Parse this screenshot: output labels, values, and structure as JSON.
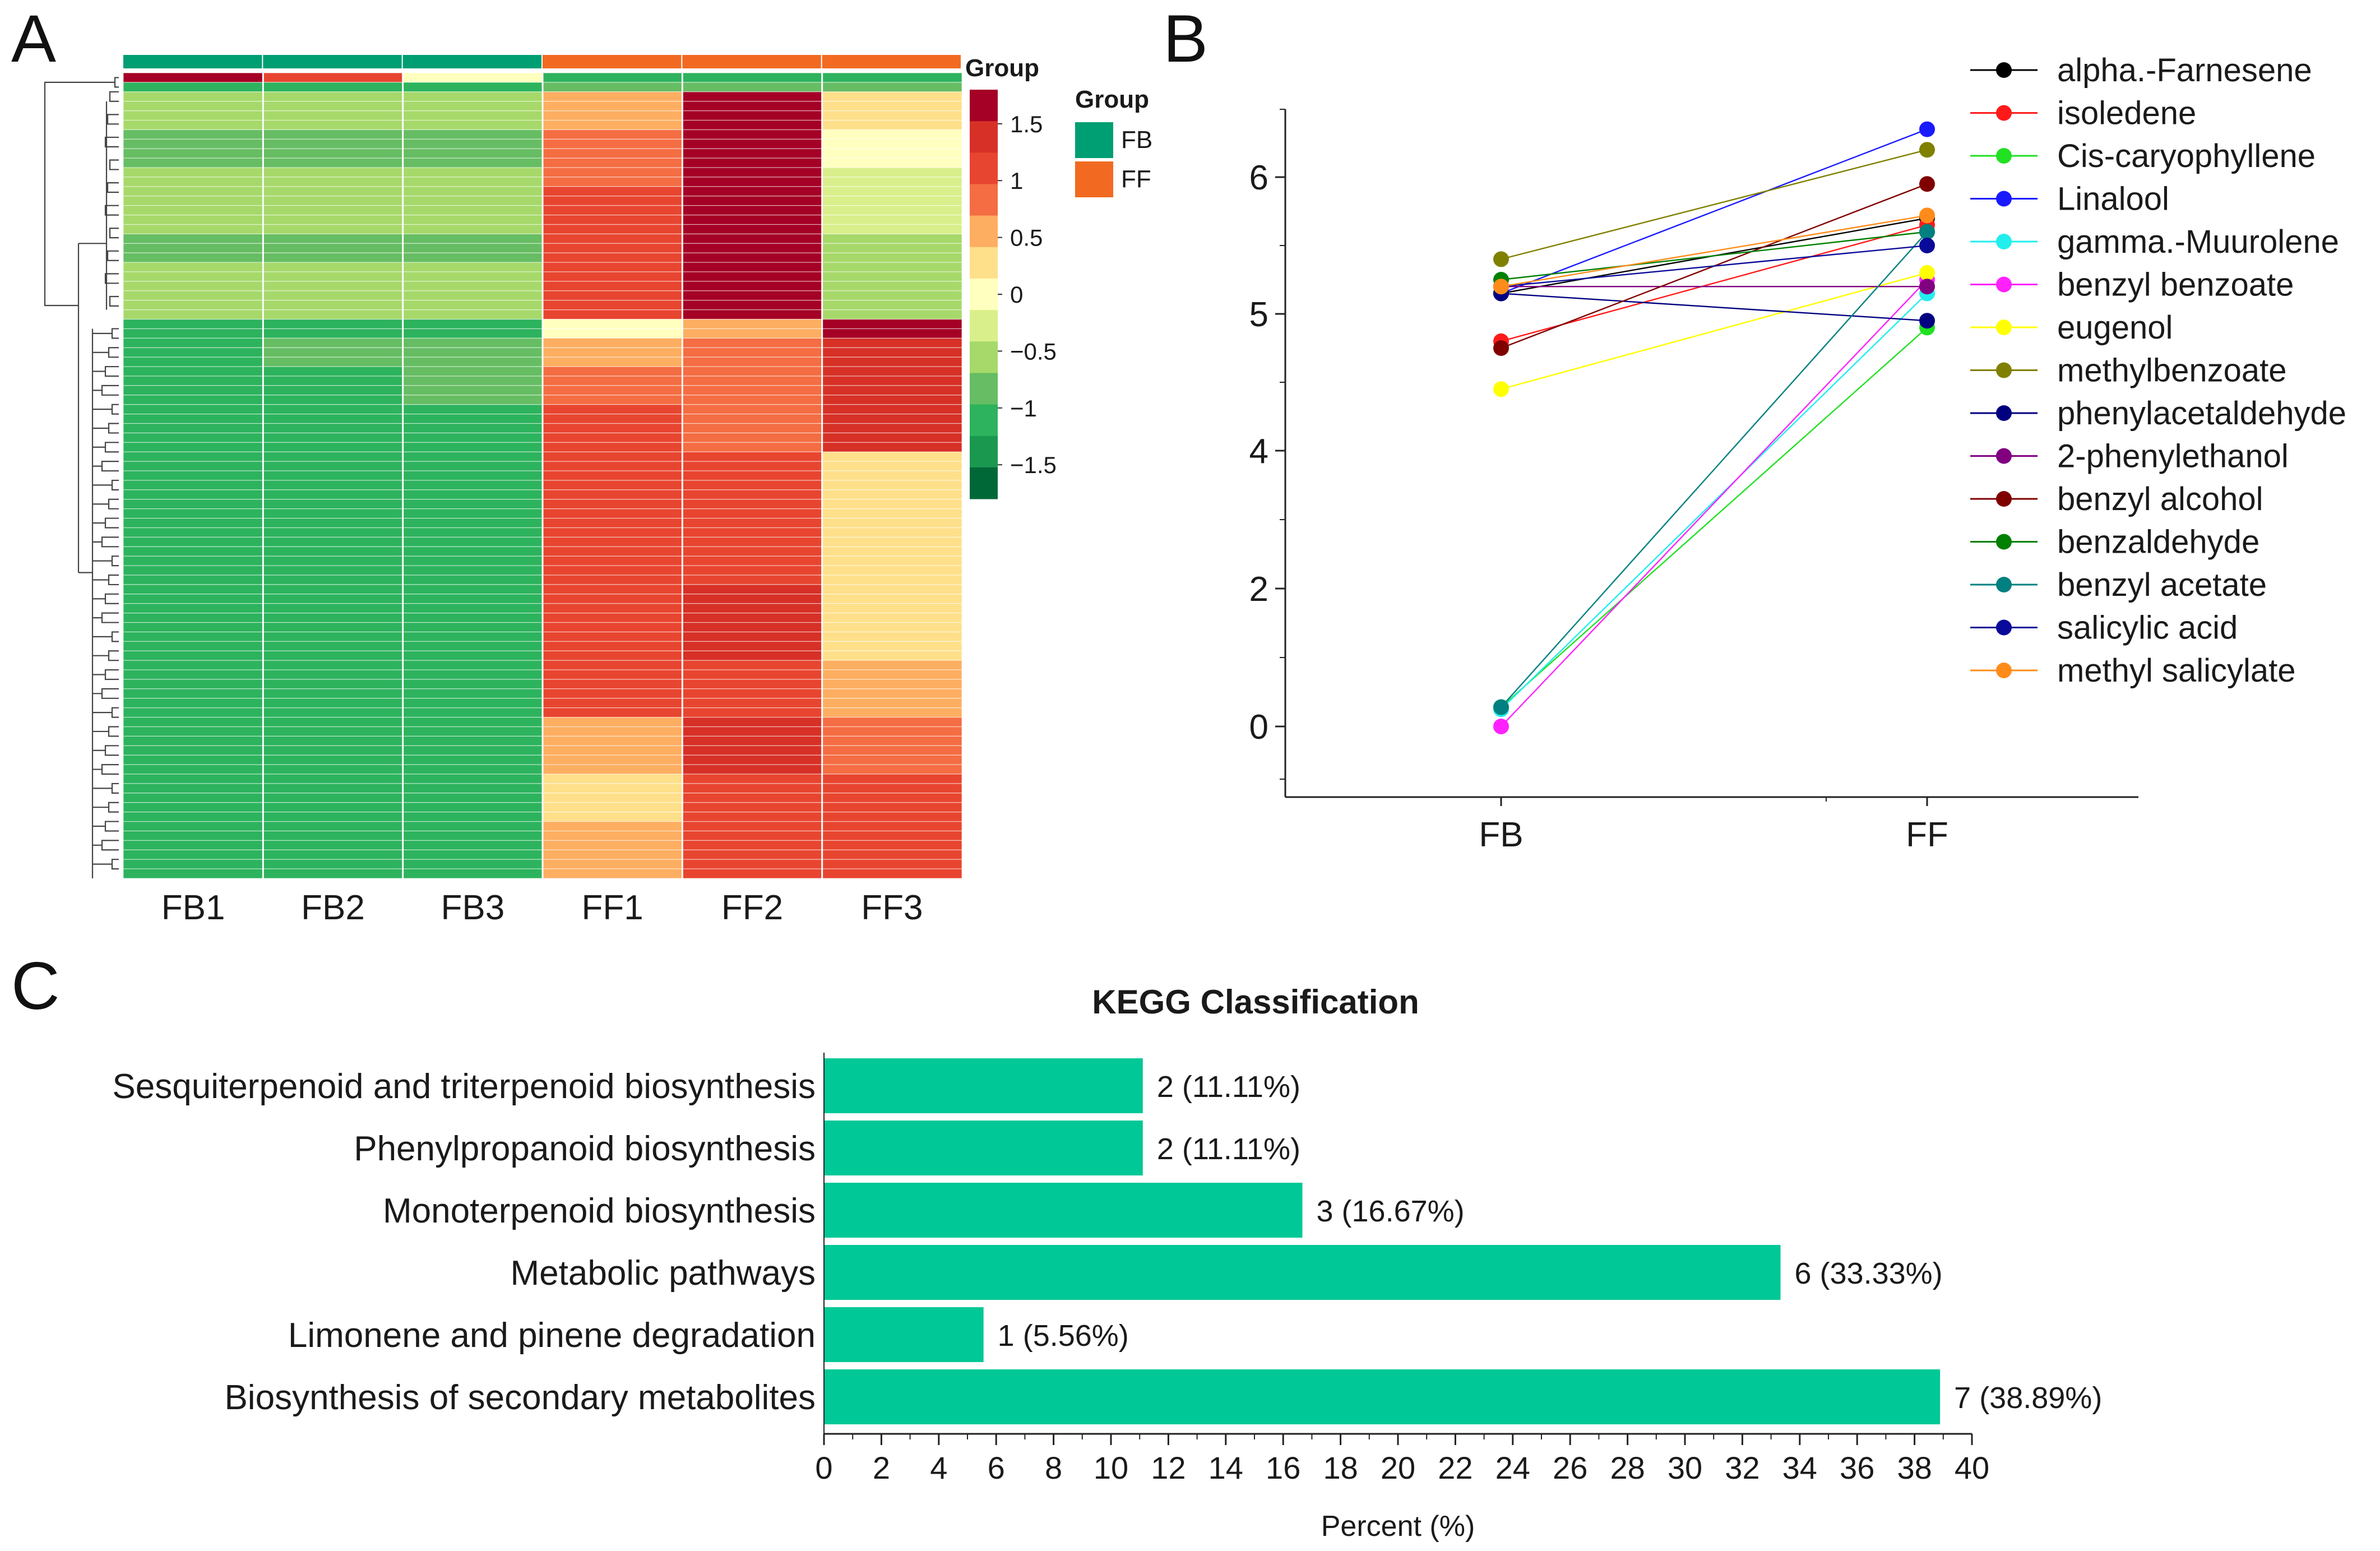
{
  "panels": {
    "a": "A",
    "b": "B",
    "c": "C"
  },
  "chart_data": [
    {
      "type": "heatmap",
      "panel": "A",
      "columns": [
        "FB1",
        "FB2",
        "FB3",
        "FF1",
        "FF2",
        "FF3"
      ],
      "group_title": "Group",
      "legend_title": "Group",
      "groups": [
        {
          "name": "FB",
          "color": "#009e73"
        },
        {
          "name": "FF",
          "color": "#f26a21"
        }
      ],
      "column_groups": [
        "FB",
        "FB",
        "FB",
        "FF",
        "FF",
        "FF"
      ],
      "scale_ticks": [
        "1.5",
        "1",
        "0.5",
        "0",
        "−0.5",
        "−1",
        "−1.5"
      ],
      "scale_range": [
        -1.8,
        1.8
      ],
      "colors": [
        "#006837",
        "#1a9850",
        "#2db35d",
        "#66bd63",
        "#a6d96a",
        "#d9ef8b",
        "#ffffbf",
        "#fee08b",
        "#fdae61",
        "#f46d43",
        "#e84530",
        "#d73027",
        "#a50026"
      ],
      "row_blocks": [
        {
          "rows": 1,
          "values": [
            1.6,
            1.0,
            0.1,
            -1.0,
            -1.0,
            -1.0
          ]
        },
        {
          "rows": 1,
          "values": [
            -1.0,
            -1.0,
            -1.0,
            -0.9,
            -0.9,
            -0.9
          ]
        },
        {
          "rows": 4,
          "values": [
            -0.6,
            -0.6,
            -0.6,
            0.6,
            1.7,
            0.2
          ]
        },
        {
          "rows": 4,
          "values": [
            -0.7,
            -0.7,
            -0.7,
            0.9,
            1.6,
            0.0
          ]
        },
        {
          "rows": 2,
          "values": [
            -0.5,
            -0.5,
            -0.5,
            0.8,
            1.6,
            -0.2
          ]
        },
        {
          "rows": 5,
          "values": [
            -0.6,
            -0.6,
            -0.6,
            1.1,
            1.7,
            -0.4
          ]
        },
        {
          "rows": 3,
          "values": [
            -0.7,
            -0.7,
            -0.7,
            1.2,
            1.6,
            -0.6
          ]
        },
        {
          "rows": 6,
          "values": [
            -0.6,
            -0.6,
            -0.6,
            1.0,
            1.7,
            -0.5
          ]
        },
        {
          "rows": 2,
          "values": [
            -1.0,
            -1.0,
            -1.0,
            0.1,
            0.6,
            1.6
          ]
        },
        {
          "rows": 3,
          "values": [
            -1.0,
            -0.7,
            -0.8,
            0.5,
            0.8,
            1.4
          ]
        },
        {
          "rows": 4,
          "values": [
            -1.0,
            -1.0,
            -0.9,
            0.9,
            0.7,
            1.4
          ]
        },
        {
          "rows": 5,
          "values": [
            -1.0,
            -1.0,
            -1.0,
            1.0,
            0.7,
            1.3
          ]
        },
        {
          "rows": 4,
          "values": [
            -1.0,
            -1.0,
            -1.0,
            1.2,
            1.1,
            0.4
          ]
        },
        {
          "rows": 10,
          "values": [
            -1.0,
            -1.0,
            -1.0,
            1.0,
            1.2,
            0.4
          ]
        },
        {
          "rows": 8,
          "values": [
            -1.0,
            -1.0,
            -1.0,
            1.0,
            1.4,
            0.4
          ]
        },
        {
          "rows": 6,
          "values": [
            -1.0,
            -1.0,
            -1.0,
            1.1,
            1.1,
            0.6
          ]
        },
        {
          "rows": 6,
          "values": [
            -1.0,
            -1.0,
            -1.0,
            0.5,
            1.3,
            0.9
          ]
        },
        {
          "rows": 5,
          "values": [
            -1.0,
            -1.0,
            -1.0,
            0.4,
            1.2,
            1.0
          ]
        },
        {
          "rows": 6,
          "values": [
            -1.0,
            -1.0,
            -1.0,
            0.6,
            1.2,
            1.0
          ]
        }
      ]
    },
    {
      "type": "line",
      "panel": "B",
      "categories": [
        "FB",
        "FF"
      ],
      "yticks": [
        "0",
        "2",
        "4",
        "5",
        "6"
      ],
      "series": [
        {
          "name": "alpha.-Farnesene",
          "color": "#000000",
          "values": [
            5.15,
            5.7
          ]
        },
        {
          "name": "isoledene",
          "color": "#ff1a1a",
          "values": [
            4.8,
            5.65
          ]
        },
        {
          "name": "Cis-caryophyllene",
          "color": "#22e022",
          "values": [
            0.28,
            4.9
          ]
        },
        {
          "name": "Linalool",
          "color": "#1a1aff",
          "values": [
            5.15,
            6.35
          ]
        },
        {
          "name": "gamma.-Muurolene",
          "color": "#22eeee",
          "values": [
            0.25,
            5.15
          ]
        },
        {
          "name": "benzyl benzoate",
          "color": "#ff22ff",
          "values": [
            0.0,
            5.25
          ]
        },
        {
          "name": "eugenol",
          "color": "#ffff00",
          "values": [
            4.45,
            5.3
          ]
        },
        {
          "name": "methylbenzoate",
          "color": "#808000",
          "values": [
            5.4,
            6.2
          ]
        },
        {
          "name": "phenylacetaldehyde",
          "color": "#000080",
          "values": [
            5.15,
            4.95
          ]
        },
        {
          "name": "2-phenylethanol",
          "color": "#800080",
          "values": [
            5.2,
            5.2
          ]
        },
        {
          "name": "benzyl alcohol",
          "color": "#800000",
          "values": [
            4.75,
            5.95
          ]
        },
        {
          "name": "benzaldehyde",
          "color": "#008000",
          "values": [
            5.25,
            5.6
          ]
        },
        {
          "name": "benzyl acetate",
          "color": "#008080",
          "values": [
            0.28,
            5.6
          ]
        },
        {
          "name": "salicylic acid",
          "color": "#0a0a9a",
          "values": [
            5.2,
            5.5
          ]
        },
        {
          "name": "methyl salicylate",
          "color": "#ff8c1a",
          "values": [
            5.2,
            5.72
          ]
        }
      ]
    },
    {
      "type": "bar",
      "orientation": "horizontal",
      "panel": "C",
      "title": "KEGG Classification",
      "categories": [
        "Sesquiterpenoid and triterpenoid biosynthesis",
        "Phenylpropanoid biosynthesis",
        "Monoterpenoid biosynthesis",
        "Metabolic pathways",
        "Limonene and pinene degradation",
        "Biosynthesis of secondary metabolites"
      ],
      "values": [
        11.11,
        11.11,
        16.67,
        33.33,
        5.56,
        38.89
      ],
      "labels": [
        "2 (11.11%)",
        "2 (11.11%)",
        "3 (16.67%)",
        "6 (33.33%)",
        "1 (5.56%)",
        "7 (38.89%)"
      ],
      "xlabel": "Percent (%)",
      "xlim": [
        0,
        40
      ],
      "xticks": [
        "0",
        "2",
        "4",
        "6",
        "8",
        "10",
        "12",
        "14",
        "16",
        "18",
        "20",
        "22",
        "24",
        "26",
        "28",
        "30",
        "32",
        "34",
        "36",
        "38",
        "40"
      ],
      "bar_color": "#00c896"
    }
  ]
}
